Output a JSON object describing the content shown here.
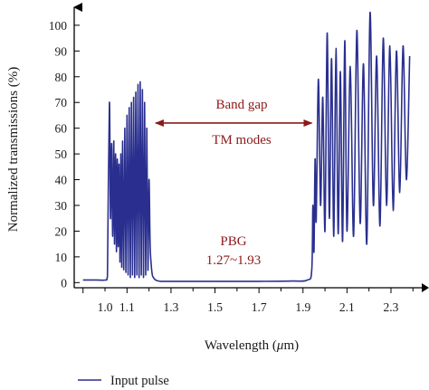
{
  "chart_data": {
    "type": "line",
    "xlabel_pre": "Wavelength (",
    "xlabel_mu": "μ",
    "xlabel_post": "m)",
    "ylabel": "Normalized transmissions (%)",
    "xlim": [
      0.9,
      2.4
    ],
    "ylim": [
      0,
      105
    ],
    "x_ticks": [
      "1.0",
      "1.1",
      "1.3",
      "1.5",
      "1.7",
      "1.9",
      "2.1",
      "2.3"
    ],
    "x_tick_values": [
      1.0,
      1.1,
      1.3,
      1.5,
      1.7,
      1.9,
      2.1,
      2.3
    ],
    "y_ticks": [
      "0",
      "10",
      "20",
      "30",
      "40",
      "50",
      "60",
      "70",
      "80",
      "90",
      "100"
    ],
    "y_tick_values": [
      0,
      10,
      20,
      30,
      40,
      50,
      60,
      70,
      80,
      90,
      100
    ],
    "grid": false,
    "legend_position": "bottom-left",
    "annotations": {
      "band_gap": "Band gap",
      "tm_modes": "TM modes",
      "pbg": "PBG",
      "pbg_range": "1.27~1.93",
      "arrow_start_x": 1.23,
      "arrow_end_x": 1.94,
      "arrow_y": 62
    },
    "series": [
      {
        "name": "Input pulse",
        "color": "#2a2f8f",
        "x": [
          0.9,
          0.96,
          1.0,
          1.01,
          1.012,
          1.02,
          1.025,
          1.03,
          1.035,
          1.04,
          1.043,
          1.048,
          1.052,
          1.056,
          1.06,
          1.064,
          1.068,
          1.072,
          1.076,
          1.08,
          1.085,
          1.09,
          1.095,
          1.1,
          1.105,
          1.11,
          1.115,
          1.12,
          1.125,
          1.13,
          1.135,
          1.14,
          1.145,
          1.15,
          1.155,
          1.16,
          1.165,
          1.17,
          1.175,
          1.18,
          1.185,
          1.19,
          1.195,
          1.2,
          1.205,
          1.21,
          1.215,
          1.22,
          1.23,
          1.25,
          1.3,
          1.5,
          1.7,
          1.85,
          1.92,
          1.94,
          1.945,
          1.95,
          1.955,
          1.96,
          1.97,
          1.98,
          1.99,
          2.0,
          2.01,
          2.02,
          2.03,
          2.04,
          2.05,
          2.06,
          2.07,
          2.08,
          2.09,
          2.1,
          2.115,
          2.13,
          2.145,
          2.16,
          2.175,
          2.19,
          2.205,
          2.22,
          2.235,
          2.25,
          2.265,
          2.28,
          2.295,
          2.31,
          2.325,
          2.34,
          2.355,
          2.37,
          2.385
        ],
        "y": [
          1,
          1,
          1,
          2,
          10,
          70,
          25,
          54,
          18,
          55,
          15,
          50,
          12,
          48,
          14,
          46,
          8,
          50,
          6,
          55,
          5,
          60,
          4,
          65,
          3,
          68,
          2,
          70,
          3,
          72,
          2,
          74,
          3,
          77,
          2,
          78,
          3,
          75,
          2,
          70,
          3,
          60,
          5,
          40,
          15,
          7,
          3,
          2,
          1,
          0.5,
          0.5,
          0.5,
          0.5,
          0.6,
          1,
          5,
          30,
          12,
          48,
          24,
          79,
          30,
          72,
          20,
          97,
          25,
          87,
          18,
          91,
          19,
          82,
          16,
          94,
          20,
          84,
          18,
          98,
          23,
          85,
          15,
          105,
          30,
          88,
          22,
          95,
          30,
          92,
          28,
          90,
          35,
          92,
          40,
          88
        ]
      }
    ]
  }
}
